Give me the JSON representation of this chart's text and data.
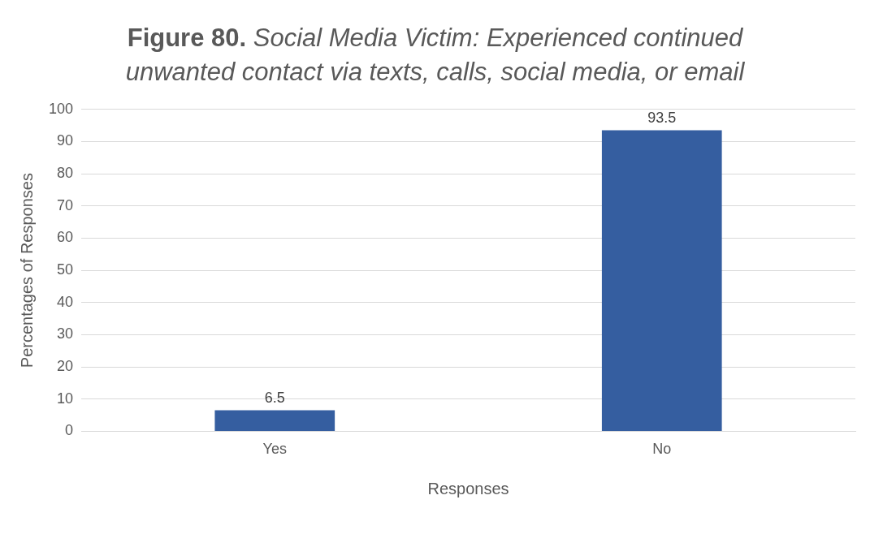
{
  "chart_data": {
    "type": "bar",
    "title": "Figure 80. Social Media Victim: Experienced continued unwanted contact via texts, calls, social media, or email",
    "xlabel": "Responses",
    "ylabel": "Percentages of Responses",
    "categories": [
      "Yes",
      "No"
    ],
    "values": [
      6.5,
      93.5
    ],
    "color": "#355ea0",
    "ylim": [
      0,
      100
    ],
    "yticks": [
      0,
      10,
      20,
      30,
      40,
      50,
      60,
      70,
      80,
      90,
      100
    ],
    "grid": "y",
    "data_labels": true,
    "legend": false
  }
}
